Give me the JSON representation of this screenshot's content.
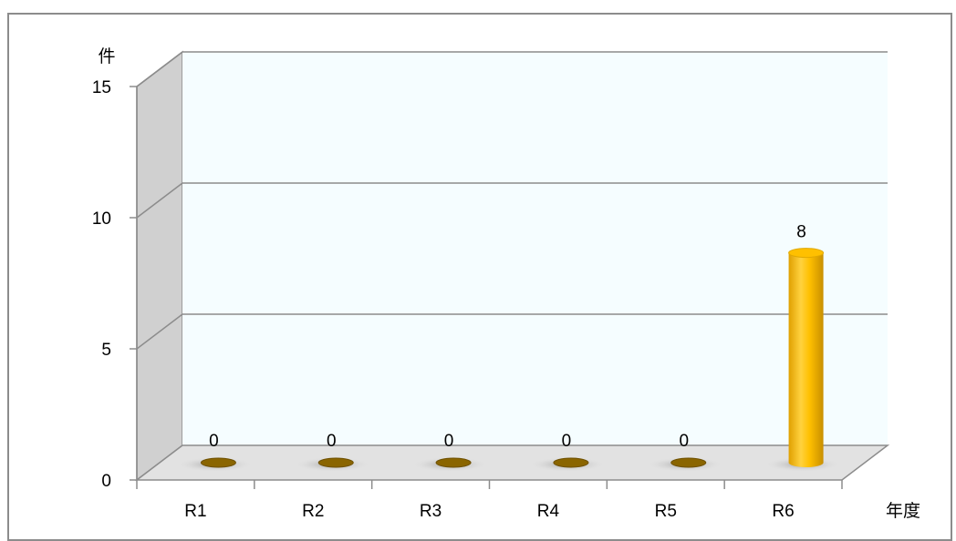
{
  "chart_data": {
    "type": "bar",
    "style": "3d-cylinder",
    "categories": [
      "R1",
      "R2",
      "R3",
      "R4",
      "R5",
      "R6"
    ],
    "values": [
      0,
      0,
      0,
      0,
      0,
      8
    ],
    "data_labels": [
      "0",
      "0",
      "0",
      "0",
      "0",
      "8"
    ],
    "ylabel": "件",
    "xlabel": "年度",
    "ylim": [
      0,
      15
    ],
    "yticks": [
      "0",
      "5",
      "10",
      "15"
    ],
    "grid": true,
    "legend": "none",
    "colors": {
      "bar": "#ffc000",
      "bar_dark": "#b38600",
      "back_wall": "#f5fdff",
      "side_wall": "#d0d0d0",
      "floor": "#e2e2e2",
      "gridline": "#8c8c8c"
    }
  }
}
